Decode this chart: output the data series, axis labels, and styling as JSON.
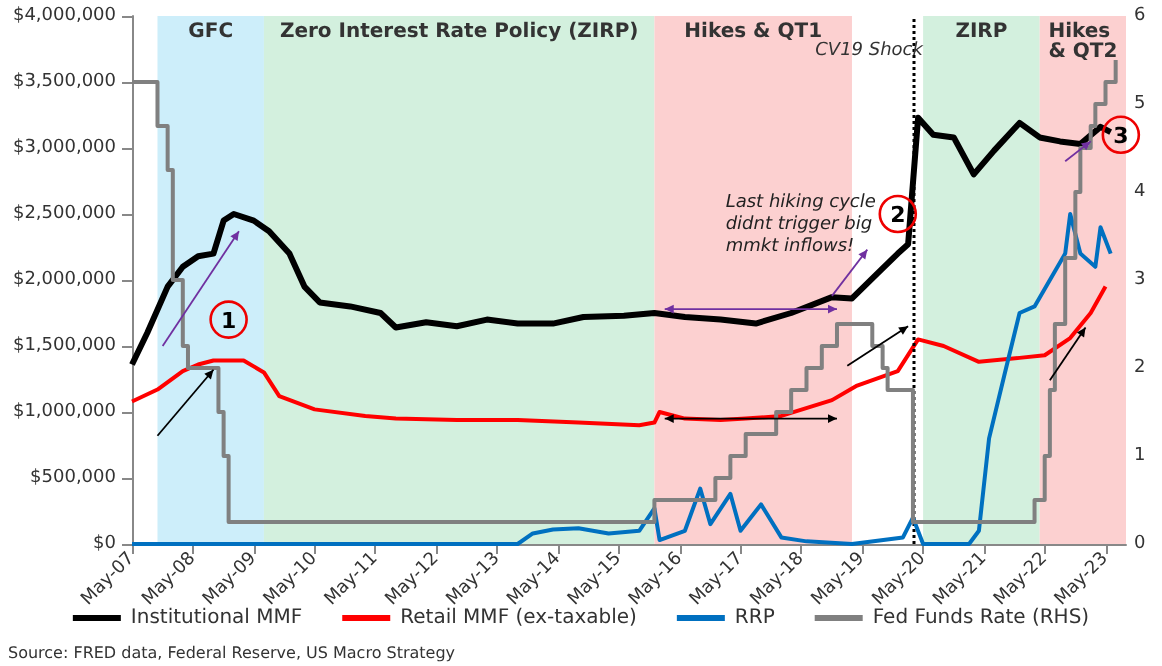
{
  "chart_data": {
    "type": "line",
    "xlim": [
      "2007-05",
      "2023-09"
    ],
    "xticks": [
      {
        "value": "2007-05",
        "label": "May-07"
      },
      {
        "value": "2008-05",
        "label": "May-08"
      },
      {
        "value": "2009-05",
        "label": "May-09"
      },
      {
        "value": "2010-05",
        "label": "May-10"
      },
      {
        "value": "2011-05",
        "label": "May-11"
      },
      {
        "value": "2012-05",
        "label": "May-12"
      },
      {
        "value": "2013-05",
        "label": "May-13"
      },
      {
        "value": "2014-05",
        "label": "May-14"
      },
      {
        "value": "2015-05",
        "label": "May-15"
      },
      {
        "value": "2016-05",
        "label": "May-16"
      },
      {
        "value": "2017-05",
        "label": "May-17"
      },
      {
        "value": "2018-05",
        "label": "May-18"
      },
      {
        "value": "2019-05",
        "label": "May-19"
      },
      {
        "value": "2020-05",
        "label": "May-20"
      },
      {
        "value": "2021-05",
        "label": "May-21"
      },
      {
        "value": "2022-05",
        "label": "May-22"
      },
      {
        "value": "2023-05",
        "label": "May-23"
      }
    ],
    "ylim": [
      0,
      4000000
    ],
    "yticks": [
      {
        "value": 0,
        "label": "$0"
      },
      {
        "value": 500000,
        "label": "$500,000"
      },
      {
        "value": 1000000,
        "label": "$1,000,000"
      },
      {
        "value": 1500000,
        "label": "$1,500,000"
      },
      {
        "value": 2000000,
        "label": "$2,000,000"
      },
      {
        "value": 2500000,
        "label": "$2,500,000"
      },
      {
        "value": 3000000,
        "label": "$3,000,000"
      },
      {
        "value": 3500000,
        "label": "$3,500,000"
      },
      {
        "value": 4000000,
        "label": "$4,000,000"
      }
    ],
    "y2lim": [
      0,
      6
    ],
    "y2ticks": [
      0,
      1,
      2,
      3,
      4,
      5,
      6
    ],
    "grid": false,
    "legend": "bottom",
    "marker": "none",
    "series": [
      {
        "name": "Institutional MMF",
        "color": "#000000",
        "x": [
          "2007-05",
          "2007-08",
          "2007-12",
          "2008-03",
          "2008-06",
          "2008-09",
          "2008-11",
          "2009-01",
          "2009-05",
          "2009-08",
          "2009-12",
          "2010-03",
          "2010-06",
          "2010-12",
          "2011-06",
          "2011-09",
          "2012-03",
          "2012-09",
          "2013-03",
          "2013-09",
          "2014-04",
          "2014-10",
          "2015-06",
          "2015-12",
          "2016-06",
          "2017-01",
          "2017-08",
          "2018-03",
          "2018-11",
          "2019-03",
          "2019-08",
          "2019-12",
          "2020-02",
          "2020-04",
          "2020-07",
          "2020-11",
          "2021-03",
          "2021-07",
          "2021-12",
          "2022-04",
          "2022-08",
          "2022-12",
          "2023-04",
          "2023-06"
        ],
        "values": [
          1360000,
          1600000,
          1950000,
          2100000,
          2180000,
          2200000,
          2450000,
          2500000,
          2450000,
          2370000,
          2200000,
          1950000,
          1830000,
          1800000,
          1750000,
          1640000,
          1680000,
          1650000,
          1700000,
          1670000,
          1670000,
          1720000,
          1730000,
          1750000,
          1720000,
          1700000,
          1670000,
          1750000,
          1870000,
          1860000,
          2050000,
          2200000,
          2270000,
          3230000,
          3100000,
          3080000,
          2800000,
          2980000,
          3190000,
          3080000,
          3050000,
          3030000,
          3160000,
          3120000
        ]
      },
      {
        "name": "Retail MMF (ex-taxable)",
        "color": "#ff0000",
        "x": [
          "2007-05",
          "2007-10",
          "2008-03",
          "2008-06",
          "2008-09",
          "2009-03",
          "2009-07",
          "2009-10",
          "2010-05",
          "2011-03",
          "2011-09",
          "2012-09",
          "2013-09",
          "2014-09",
          "2015-09",
          "2015-12",
          "2016-01",
          "2016-06",
          "2017-01",
          "2017-06",
          "2018-01",
          "2018-11",
          "2019-04",
          "2019-12",
          "2020-04",
          "2020-09",
          "2021-04",
          "2021-12",
          "2022-05",
          "2022-10",
          "2023-02",
          "2023-05"
        ],
        "values": [
          1080000,
          1170000,
          1310000,
          1360000,
          1390000,
          1390000,
          1300000,
          1120000,
          1020000,
          970000,
          950000,
          940000,
          940000,
          920000,
          900000,
          920000,
          1000000,
          950000,
          940000,
          950000,
          970000,
          1090000,
          1200000,
          1310000,
          1550000,
          1500000,
          1380000,
          1410000,
          1430000,
          1560000,
          1750000,
          1950000
        ]
      },
      {
        "name": "RRP",
        "color": "#0070c0",
        "x": [
          "2007-05",
          "2013-09",
          "2013-12",
          "2014-04",
          "2014-09",
          "2015-03",
          "2015-09",
          "2015-12",
          "2016-01",
          "2016-06",
          "2016-09",
          "2016-11",
          "2017-03",
          "2017-05",
          "2017-09",
          "2018-01",
          "2018-06",
          "2019-03",
          "2020-01",
          "2020-03",
          "2020-05",
          "2021-02",
          "2021-04",
          "2021-06",
          "2021-09",
          "2021-12",
          "2022-03",
          "2022-06",
          "2022-09",
          "2022-10",
          "2022-12",
          "2023-03",
          "2023-04",
          "2023-06"
        ],
        "values": [
          0,
          0,
          80000,
          110000,
          120000,
          80000,
          100000,
          270000,
          30000,
          100000,
          420000,
          150000,
          380000,
          100000,
          300000,
          50000,
          20000,
          0,
          50000,
          200000,
          0,
          0,
          100000,
          800000,
          1280000,
          1750000,
          1800000,
          2000000,
          2200000,
          2500000,
          2200000,
          2100000,
          2400000,
          2200000
        ]
      },
      {
        "name": "Fed Funds Rate (RHS)",
        "color": "#808080",
        "type": "step",
        "axis": "y2",
        "x": [
          "2007-05",
          "2007-10",
          "2007-12",
          "2008-01",
          "2008-03",
          "2008-04",
          "2008-10",
          "2008-11",
          "2008-12",
          "2015-12",
          "2016-12",
          "2017-03",
          "2017-06",
          "2017-12",
          "2018-03",
          "2018-06",
          "2018-09",
          "2018-12",
          "2019-07",
          "2019-09",
          "2019-10",
          "2020-03",
          "2022-03",
          "2022-05",
          "2022-06",
          "2022-07",
          "2022-09",
          "2022-11",
          "2022-12",
          "2023-02",
          "2023-03",
          "2023-05",
          "2023-07"
        ],
        "values": [
          5.25,
          4.75,
          4.25,
          3.0,
          2.25,
          2.0,
          1.5,
          1.0,
          0.25,
          0.5,
          0.75,
          1.0,
          1.25,
          1.5,
          1.75,
          2.0,
          2.25,
          2.5,
          2.25,
          2.0,
          1.75,
          0.25,
          0.5,
          1.0,
          1.75,
          2.5,
          3.25,
          4.0,
          4.5,
          4.75,
          5.0,
          5.25,
          5.5
        ]
      }
    ],
    "bands": [
      {
        "axis": "x",
        "from": "2007-10",
        "to": "2009-07",
        "label": "GFC",
        "color": "#cdeefa"
      },
      {
        "axis": "x",
        "from": "2009-07",
        "to": "2015-12",
        "label": "Zero Interest Rate Policy (ZIRP)",
        "color": "#d3f0de"
      },
      {
        "axis": "x",
        "from": "2015-12",
        "to": "2019-03",
        "label": "Hikes & QT1",
        "color": "#fcd0d0"
      },
      {
        "axis": "x",
        "from": "2020-05",
        "to": "2022-04",
        "label": "ZIRP",
        "color": "#d3f0de"
      },
      {
        "axis": "x",
        "from": "2022-04",
        "to": "2023-09",
        "label": "Hikes & QT2",
        "color": "#fcd0d0"
      }
    ],
    "ref_lines": [
      {
        "axis": "x",
        "value": "2020-03",
        "label": "CV19 Shock",
        "color": "#000000",
        "line_style": "dotted"
      }
    ],
    "annotations": [
      {
        "text": "1",
        "x": "2008-12",
        "y": 1700000
      },
      {
        "text": "2",
        "x": "2019-12",
        "y": 2500000
      },
      {
        "text": "3",
        "x": "2023-08",
        "y": 3100000
      },
      "Last hiking cycle didnt trigger big mmkt inflows!",
      "Source: FRED data, Federal Reserve, US Macro Strategy"
    ]
  }
}
